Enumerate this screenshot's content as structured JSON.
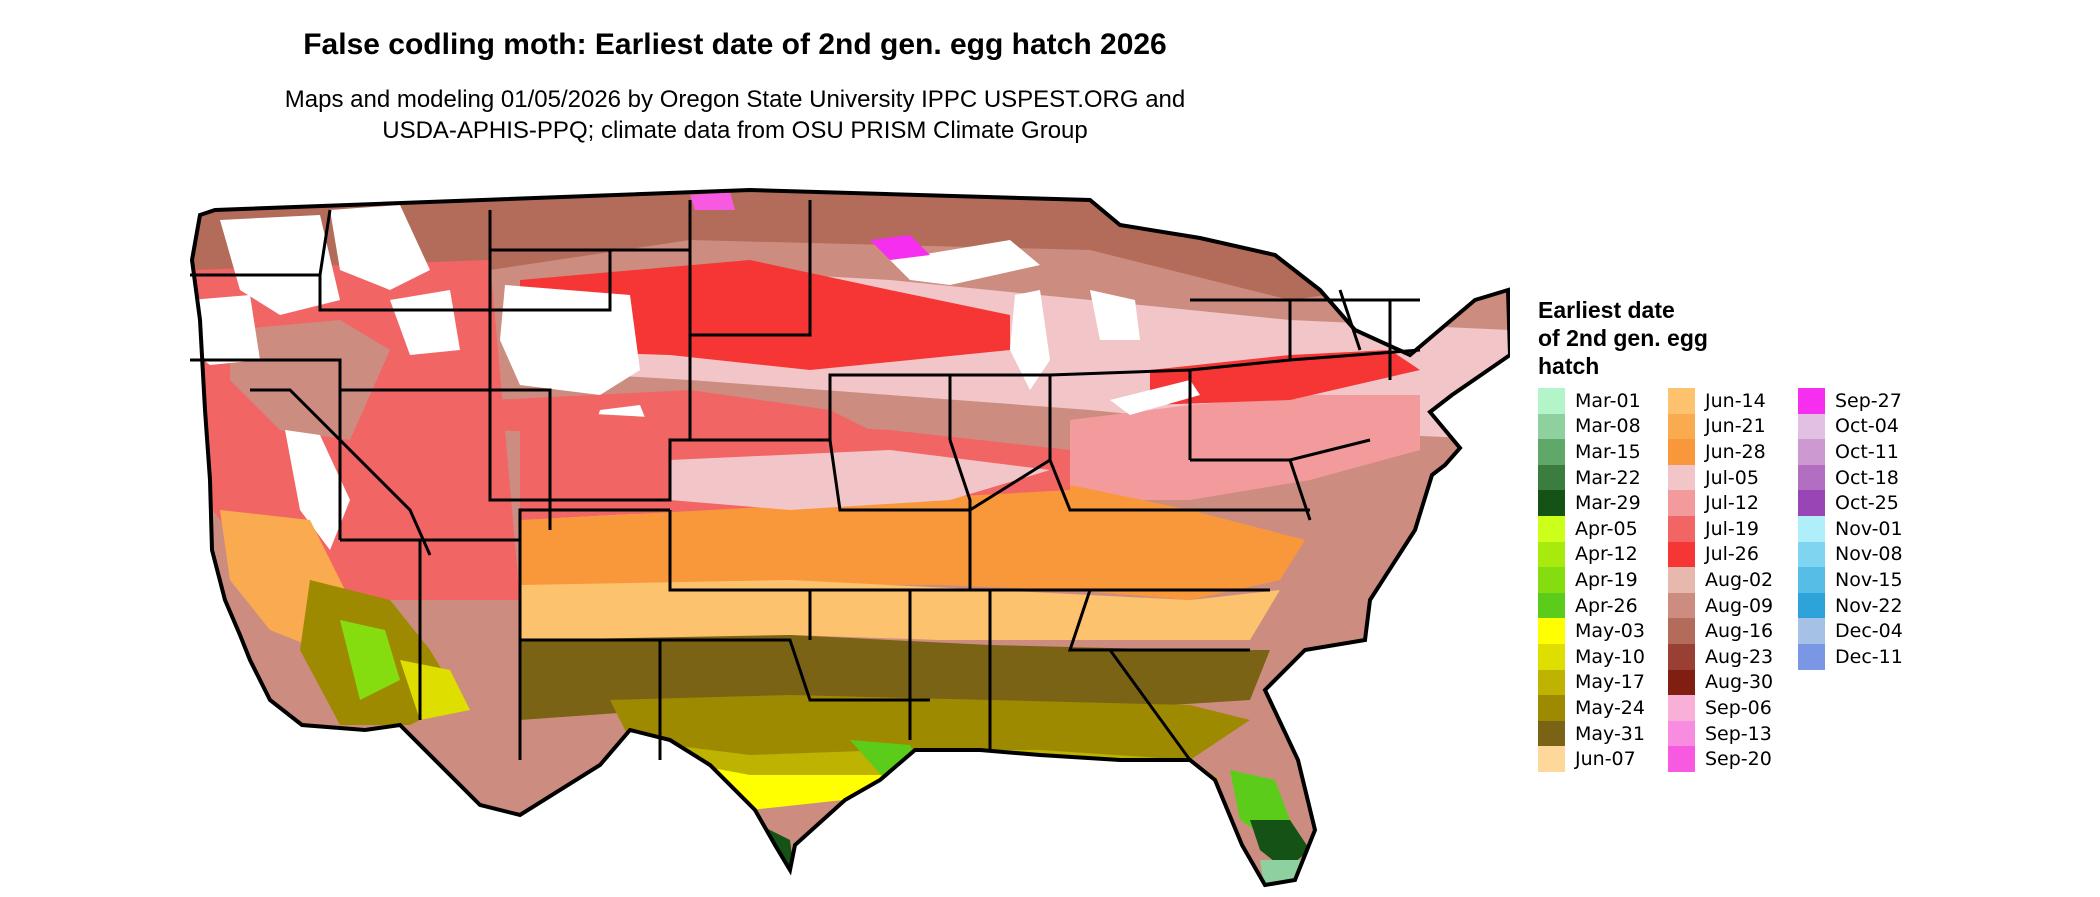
{
  "title": "False codling moth: Earliest date of 2nd gen. egg hatch 2026",
  "subtitle": "Maps and modeling 01/05/2026 by Oregon State University IPPC USPEST.ORG and\nUSDA-APHIS-PPQ; climate data from OSU PRISM Climate Group",
  "legend": {
    "title": "Earliest date\nof 2nd gen. egg\nhatch",
    "columns": [
      [
        {
          "label": "Mar-01",
          "color": "#b3f5c8"
        },
        {
          "label": "Mar-08",
          "color": "#8fd19e"
        },
        {
          "label": "Mar-15",
          "color": "#5fa86a"
        },
        {
          "label": "Mar-22",
          "color": "#3a7d3f"
        },
        {
          "label": "Mar-29",
          "color": "#155215"
        },
        {
          "label": "Apr-05",
          "color": "#ccff1a"
        },
        {
          "label": "Apr-12",
          "color": "#a8ea0e"
        },
        {
          "label": "Apr-19",
          "color": "#85dd10"
        },
        {
          "label": "Apr-26",
          "color": "#5ccc1a"
        },
        {
          "label": "May-03",
          "color": "#ffff00"
        },
        {
          "label": "May-10",
          "color": "#dede00"
        },
        {
          "label": "May-17",
          "color": "#bdb300"
        },
        {
          "label": "May-24",
          "color": "#9e8a00"
        },
        {
          "label": "May-31",
          "color": "#7a6314"
        },
        {
          "label": "Jun-07",
          "color": "#fed89a"
        }
      ],
      [
        {
          "label": "Jun-14",
          "color": "#fcc26e"
        },
        {
          "label": "Jun-21",
          "color": "#fbab4f"
        },
        {
          "label": "Jun-28",
          "color": "#f8983a"
        },
        {
          "label": "Jul-05",
          "color": "#f2c6c8"
        },
        {
          "label": "Jul-12",
          "color": "#f29a9c"
        },
        {
          "label": "Jul-19",
          "color": "#f26565"
        },
        {
          "label": "Jul-26",
          "color": "#f63535"
        },
        {
          "label": "Aug-02",
          "color": "#e6b8ae"
        },
        {
          "label": "Aug-09",
          "color": "#cc8d80"
        },
        {
          "label": "Aug-16",
          "color": "#b36b5a"
        },
        {
          "label": "Aug-23",
          "color": "#993f33"
        },
        {
          "label": "Aug-30",
          "color": "#801e12"
        },
        {
          "label": "Sep-06",
          "color": "#f9b0d8"
        },
        {
          "label": "Sep-13",
          "color": "#f88ce0"
        },
        {
          "label": "Sep-20",
          "color": "#f75ae0"
        }
      ],
      [
        {
          "label": "Sep-27",
          "color": "#f52ef0"
        },
        {
          "label": "Oct-04",
          "color": "#e1c0e3"
        },
        {
          "label": "Oct-11",
          "color": "#cc99d1"
        },
        {
          "label": "Oct-18",
          "color": "#b26fc2"
        },
        {
          "label": "Oct-25",
          "color": "#9a45b5"
        },
        {
          "label": "Nov-01",
          "color": "#b0eefa"
        },
        {
          "label": "Nov-08",
          "color": "#7fd5ef"
        },
        {
          "label": "Nov-15",
          "color": "#55bde6"
        },
        {
          "label": "Nov-22",
          "color": "#2ea3d9"
        },
        {
          "label": "Dec-04",
          "color": "#a5c2e6"
        },
        {
          "label": "Dec-11",
          "color": "#7a97e6"
        }
      ]
    ]
  }
}
